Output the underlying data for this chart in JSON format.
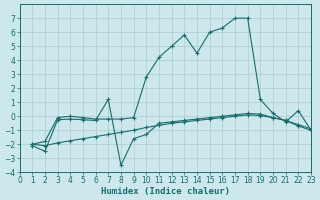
{
  "xlabel": "Humidex (Indice chaleur)",
  "background_color": "#cce8ed",
  "grid_color": "#aacccc",
  "line_color": "#1a6b6b",
  "xlim": [
    0,
    23
  ],
  "ylim": [
    -4,
    8
  ],
  "xticks": [
    0,
    1,
    2,
    3,
    4,
    5,
    6,
    7,
    8,
    9,
    10,
    11,
    12,
    13,
    14,
    15,
    16,
    17,
    18,
    19,
    20,
    21,
    22,
    23
  ],
  "yticks": [
    -4,
    -3,
    -2,
    -1,
    0,
    1,
    2,
    3,
    4,
    5,
    6,
    7
  ],
  "s1_x": [
    1,
    2,
    3,
    4,
    5,
    6,
    7,
    8,
    9,
    10,
    11,
    12,
    13,
    14,
    15,
    16,
    17,
    18,
    19,
    20,
    21,
    22,
    23
  ],
  "s1_y": [
    -2.1,
    -2.5,
    -0.25,
    -0.2,
    -0.25,
    -0.3,
    1.2,
    -3.5,
    -1.6,
    -1.3,
    -0.5,
    -0.4,
    -0.3,
    -0.2,
    -0.1,
    0.0,
    0.1,
    0.2,
    0.15,
    -0.1,
    -0.3,
    -0.7,
    -1.0
  ],
  "s2_x": [
    1,
    2,
    3,
    4,
    5,
    6,
    7,
    8,
    9,
    10,
    11,
    12,
    13,
    14,
    15,
    16,
    17,
    18,
    19,
    20,
    21,
    22,
    23
  ],
  "s2_y": [
    -2.0,
    -1.8,
    -0.1,
    -0.0,
    -0.1,
    -0.2,
    -0.2,
    -0.2,
    -0.1,
    2.8,
    4.2,
    5.0,
    5.8,
    4.5,
    6.0,
    6.3,
    7.0,
    7.0,
    1.2,
    0.2,
    -0.4,
    0.4,
    -1.0
  ],
  "s3_x": [
    1,
    2,
    3,
    4,
    5,
    6,
    7,
    8,
    9,
    10,
    11,
    12,
    13,
    14,
    15,
    16,
    17,
    18,
    19,
    20,
    21,
    22,
    23
  ],
  "s3_y": [
    -2.0,
    -2.1,
    -1.9,
    -1.75,
    -1.6,
    -1.45,
    -1.3,
    -1.15,
    -1.0,
    -0.8,
    -0.65,
    -0.5,
    -0.4,
    -0.3,
    -0.2,
    -0.1,
    0.0,
    0.1,
    0.05,
    -0.1,
    -0.3,
    -0.6,
    -0.9
  ]
}
